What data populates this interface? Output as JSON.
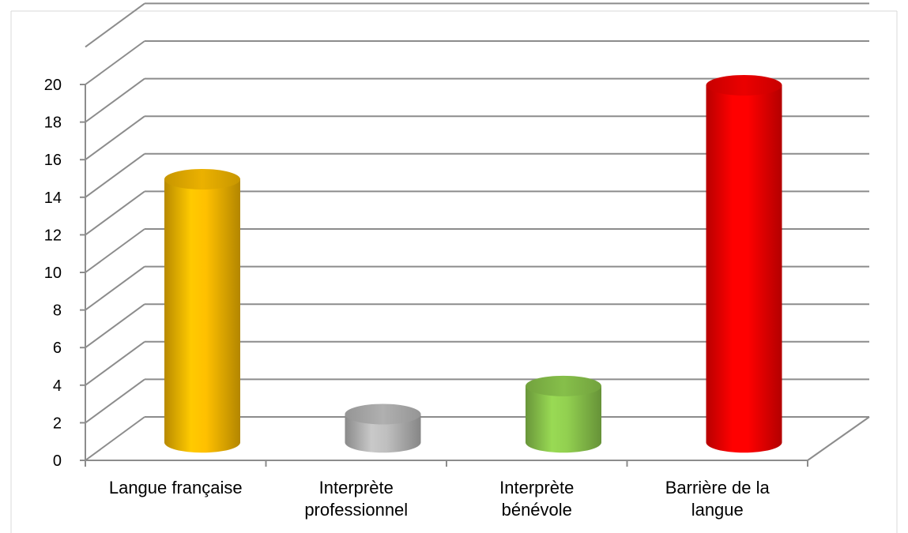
{
  "chart_data": {
    "type": "bar",
    "categories": [
      "Langue française",
      "Interprète professionnel",
      "Interprète bénévole",
      "Barrière de la langue"
    ],
    "category_lines": [
      [
        "Langue française"
      ],
      [
        "Interprète",
        "professionnel"
      ],
      [
        "Interprète",
        "bénévole"
      ],
      [
        "Barrière de la",
        "langue"
      ]
    ],
    "values": [
      14,
      1.5,
      3,
      19
    ],
    "colors": [
      "#ffc000",
      "#bfbfbf",
      "#92d050",
      "#ff0000"
    ],
    "ylim": [
      0,
      20
    ],
    "yticks": [
      "0",
      "2",
      "4",
      "6",
      "8",
      "10",
      "12",
      "14",
      "16",
      "18",
      "20"
    ],
    "grid": true,
    "style": "3d-cylinder",
    "title": "",
    "xlabel": "",
    "ylabel": ""
  }
}
